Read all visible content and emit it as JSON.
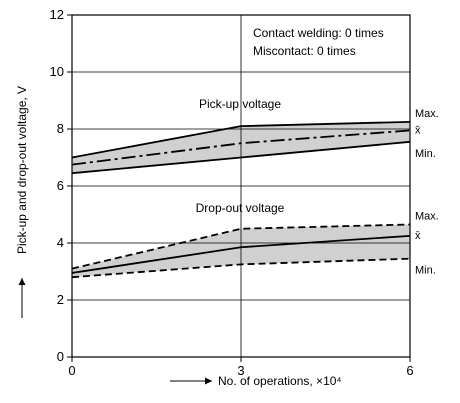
{
  "chart_data": {
    "type": "area",
    "title": "",
    "xlabel": "No. of operations, ×10⁴",
    "ylabel": "Pick-up and drop-out voltage, V",
    "xlim": [
      0,
      6
    ],
    "ylim": [
      0,
      12
    ],
    "x_ticks": [
      "0",
      "3",
      "6"
    ],
    "y_ticks": [
      "0",
      "2",
      "4",
      "6",
      "8",
      "10",
      "12"
    ],
    "grid": true,
    "x": [
      0,
      3,
      6
    ],
    "groups": [
      {
        "label": "Pick-up voltage",
        "band_fill": "#d0d0d0",
        "series": [
          {
            "name": "Max.",
            "style": "solid",
            "values": [
              7.0,
              8.1,
              8.25
            ]
          },
          {
            "name": "x̄",
            "style": "dashdot",
            "values": [
              6.75,
              7.5,
              7.95
            ]
          },
          {
            "name": "Min.",
            "style": "solid",
            "values": [
              6.45,
              7.0,
              7.55
            ]
          }
        ]
      },
      {
        "label": "Drop-out voltage",
        "band_fill": "#d0d0d0",
        "series": [
          {
            "name": "Max.",
            "style": "dashed",
            "values": [
              3.1,
              4.5,
              4.65
            ]
          },
          {
            "name": "x̄",
            "style": "solid",
            "values": [
              2.95,
              3.85,
              4.25
            ]
          },
          {
            "name": "Min.",
            "style": "dashed",
            "values": [
              2.8,
              3.25,
              3.45
            ]
          }
        ]
      }
    ],
    "annotations": [
      "Contact welding: 0 times",
      "Miscontact: 0 times"
    ]
  }
}
